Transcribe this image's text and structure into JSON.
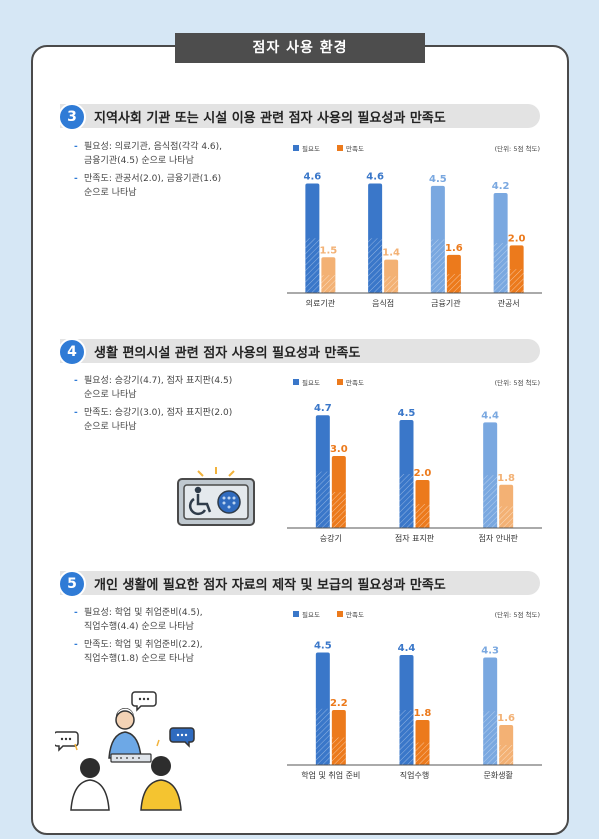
{
  "page": {
    "title": "점자 사용 환경"
  },
  "sections": [
    {
      "number": "3",
      "title": "지역사회 기관 또는 시설 이용 관련 점자 사용의 필요성과 만족도",
      "desc": [
        "필요성: 의료기관, 음식점(각각 4.6),\n금융기관(4.5) 순으로 나타남",
        "만족도: 관공서(2.0), 금융기관(1.6)\n순으로 나타남"
      ]
    },
    {
      "number": "4",
      "title": "생활 편의시설 관련 점자 사용의 필요성과 만족도",
      "desc": [
        "필요성: 승강기(4.7), 점자 표지판(4.5)\n순으로 나타남",
        "만족도: 승강기(3.0), 점자 표지판(2.0)\n순으로 나타남"
      ]
    },
    {
      "number": "5",
      "title": "개인 생활에 필요한 점자 자료의 제작 및 보급의 필요성과 만족도",
      "desc": [
        "필요성: 학업 및 취업준비(4.5),\n직업수행(4.4) 순으로 나타남",
        "만족도: 학업 및 취업준비(2.2),\n직업수행(1.8) 순으로 타나남"
      ]
    }
  ],
  "colors": {
    "need": "#3a77c9",
    "satisfaction": "#ec7a1c",
    "badge": "#2f7bd6"
  },
  "chart_data": [
    {
      "type": "bar",
      "unit_note": "(단위: 5점 척도)",
      "categories": [
        "의료기관",
        "음식점",
        "금융기관",
        "관공서"
      ],
      "series": [
        {
          "name": "필요도",
          "values": [
            4.6,
            4.6,
            4.5,
            4.2
          ]
        },
        {
          "name": "만족도",
          "values": [
            1.5,
            1.4,
            1.6,
            2.0
          ]
        }
      ],
      "ylim": [
        0,
        5
      ],
      "legend": "top-left"
    },
    {
      "type": "bar",
      "unit_note": "(단위: 5점 척도)",
      "categories": [
        "승강기",
        "점자 표지판",
        "점자 안내판"
      ],
      "series": [
        {
          "name": "필요도",
          "values": [
            4.7,
            4.5,
            4.4
          ]
        },
        {
          "name": "만족도",
          "values": [
            3.0,
            2.0,
            1.8
          ]
        }
      ],
      "ylim": [
        0,
        5
      ],
      "legend": "top-left"
    },
    {
      "type": "bar",
      "unit_note": "(단위: 5점 척도)",
      "categories": [
        "학업 및 취업 준비",
        "직업수행",
        "문화생활"
      ],
      "series": [
        {
          "name": "필요도",
          "values": [
            4.5,
            4.4,
            4.3
          ]
        },
        {
          "name": "만족도",
          "values": [
            2.2,
            1.8,
            1.6
          ]
        }
      ],
      "ylim": [
        0,
        5
      ],
      "legend": "top-left"
    }
  ]
}
